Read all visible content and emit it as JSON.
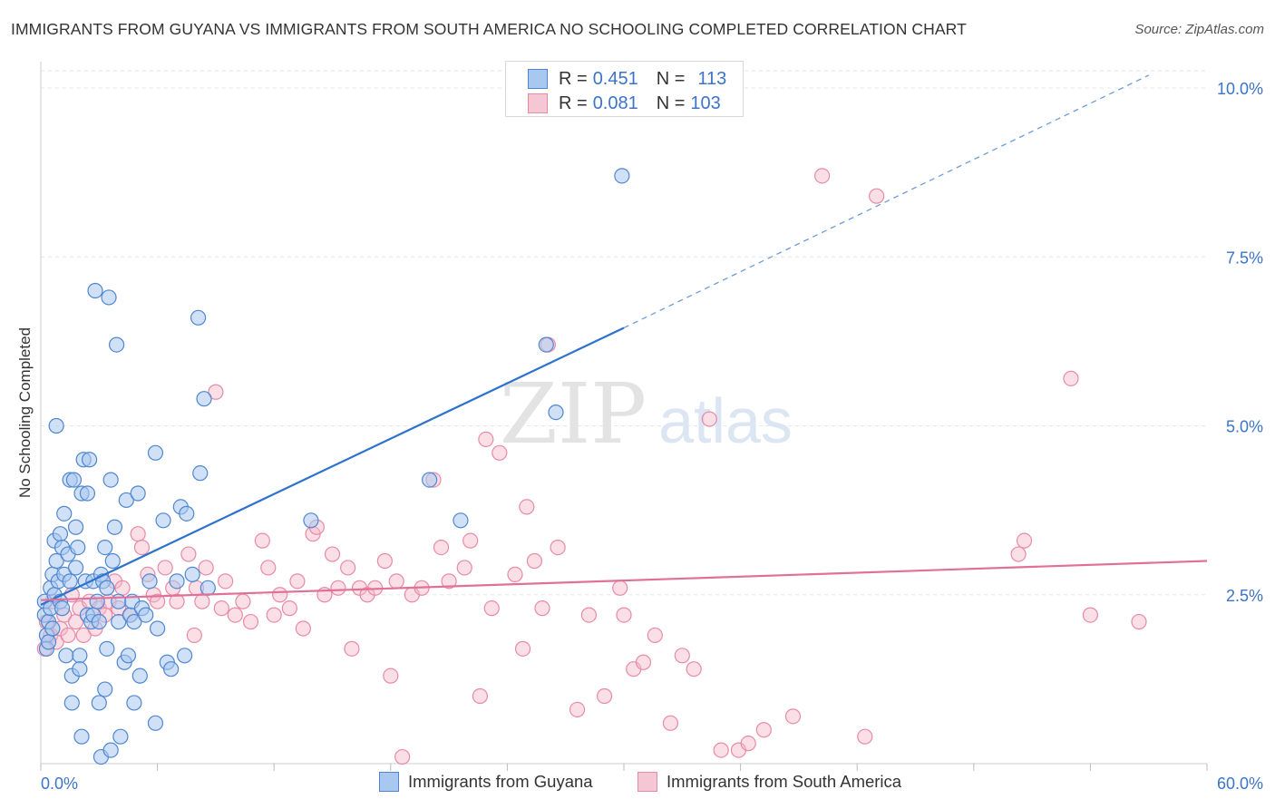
{
  "title": "IMMIGRANTS FROM GUYANA VS IMMIGRANTS FROM SOUTH AMERICA NO SCHOOLING COMPLETED CORRELATION CHART",
  "source": "Source: ZipAtlas.com",
  "watermark": {
    "zip": "ZIP",
    "atlas": "atlas"
  },
  "colors": {
    "blue_fill": "#a9c8f0",
    "blue_stroke": "#4f86d0",
    "blue_line": "#2d72cc",
    "pink_fill": "#f5b8ca",
    "pink_stroke": "#e88aa6",
    "pink_line": "#e07098",
    "axis_label": "#3b74c8"
  },
  "legend": {
    "rows": [
      {
        "r_label": "R = ",
        "r_value": "0.451",
        "n_label": "N = ",
        "n_value": "113"
      },
      {
        "r_label": "R = ",
        "r_value": "0.081",
        "n_label": "N = ",
        "n_value": "103"
      }
    ]
  },
  "chart_data": {
    "type": "scatter",
    "title": "IMMIGRANTS FROM GUYANA VS IMMIGRANTS FROM SOUTH AMERICA NO SCHOOLING COMPLETED CORRELATION CHART",
    "xlabel": "",
    "ylabel": "No Schooling Completed",
    "xlim": [
      0,
      60
    ],
    "ylim": [
      0,
      10
    ],
    "x_tick_labels": [
      "0.0%",
      "60.0%"
    ],
    "y_ticks": [
      2.5,
      5.0,
      7.5,
      10.0
    ],
    "y_tick_labels": [
      "2.5%",
      "5.0%",
      "7.5%",
      "10.0%"
    ],
    "grid": true,
    "legend_placement": "bottom",
    "series": [
      {
        "name": "Immigrants from Guyana",
        "trend": {
          "x0": 0,
          "y0": 2.35,
          "x1": 30,
          "y1": 6.45,
          "dashed_to_x": 57,
          "dashed_to_y": 10.0
        },
        "points": [
          [
            0.2,
            2.4
          ],
          [
            0.2,
            2.2
          ],
          [
            0.3,
            1.9
          ],
          [
            0.3,
            1.7
          ],
          [
            0.4,
            2.1
          ],
          [
            0.4,
            1.8
          ],
          [
            0.5,
            2.3
          ],
          [
            0.5,
            2.6
          ],
          [
            0.6,
            2.8
          ],
          [
            0.6,
            2.0
          ],
          [
            0.7,
            2.5
          ],
          [
            0.7,
            3.3
          ],
          [
            0.8,
            5.0
          ],
          [
            0.8,
            3.0
          ],
          [
            0.9,
            2.7
          ],
          [
            1.0,
            2.4
          ],
          [
            1.0,
            3.4
          ],
          [
            1.1,
            3.2
          ],
          [
            1.1,
            2.3
          ],
          [
            1.2,
            3.7
          ],
          [
            1.2,
            2.8
          ],
          [
            1.3,
            1.6
          ],
          [
            1.4,
            3.1
          ],
          [
            1.5,
            2.7
          ],
          [
            1.5,
            4.2
          ],
          [
            1.6,
            1.3
          ],
          [
            1.6,
            0.9
          ],
          [
            1.7,
            4.2
          ],
          [
            1.8,
            3.5
          ],
          [
            1.8,
            2.9
          ],
          [
            1.9,
            3.2
          ],
          [
            2.0,
            1.6
          ],
          [
            2.0,
            1.4
          ],
          [
            2.1,
            0.4
          ],
          [
            2.1,
            4.0
          ],
          [
            2.2,
            4.5
          ],
          [
            2.3,
            2.7
          ],
          [
            2.4,
            2.2
          ],
          [
            2.4,
            4.0
          ],
          [
            2.5,
            4.5
          ],
          [
            2.6,
            2.1
          ],
          [
            2.7,
            2.2
          ],
          [
            2.7,
            2.7
          ],
          [
            2.8,
            7.0
          ],
          [
            2.9,
            2.4
          ],
          [
            3.0,
            0.9
          ],
          [
            3.0,
            2.1
          ],
          [
            3.1,
            2.8
          ],
          [
            3.1,
            0.1
          ],
          [
            3.2,
            2.7
          ],
          [
            3.3,
            1.1
          ],
          [
            3.3,
            3.2
          ],
          [
            3.4,
            1.7
          ],
          [
            3.4,
            2.6
          ],
          [
            3.5,
            6.9
          ],
          [
            3.6,
            4.2
          ],
          [
            3.6,
            0.2
          ],
          [
            3.7,
            3.0
          ],
          [
            3.8,
            3.5
          ],
          [
            3.9,
            6.2
          ],
          [
            4.0,
            2.4
          ],
          [
            4.0,
            2.1
          ],
          [
            4.1,
            0.4
          ],
          [
            4.3,
            1.5
          ],
          [
            4.4,
            3.9
          ],
          [
            4.5,
            1.6
          ],
          [
            4.6,
            2.2
          ],
          [
            4.7,
            2.4
          ],
          [
            4.8,
            0.9
          ],
          [
            4.8,
            2.1
          ],
          [
            5.0,
            4.0
          ],
          [
            5.1,
            1.3
          ],
          [
            5.2,
            2.3
          ],
          [
            5.4,
            2.2
          ],
          [
            5.6,
            2.7
          ],
          [
            5.9,
            0.6
          ],
          [
            5.9,
            4.6
          ],
          [
            6.0,
            2.0
          ],
          [
            6.3,
            3.6
          ],
          [
            6.5,
            1.5
          ],
          [
            6.7,
            1.4
          ],
          [
            7.0,
            2.7
          ],
          [
            7.2,
            3.8
          ],
          [
            7.4,
            1.6
          ],
          [
            7.5,
            3.7
          ],
          [
            7.8,
            2.8
          ],
          [
            8.1,
            6.6
          ],
          [
            8.2,
            4.3
          ],
          [
            8.4,
            5.4
          ],
          [
            8.6,
            2.6
          ],
          [
            13.9,
            3.6
          ],
          [
            20.0,
            4.2
          ],
          [
            21.6,
            3.6
          ],
          [
            26.0,
            6.2
          ],
          [
            26.5,
            5.2
          ],
          [
            29.9,
            8.7
          ]
        ]
      },
      {
        "name": "Immigrants from South America",
        "trend": {
          "x0": 0,
          "y0": 2.42,
          "x1": 60,
          "y1": 3.0
        },
        "points": [
          [
            0.2,
            1.7
          ],
          [
            0.3,
            2.1
          ],
          [
            0.5,
            1.9
          ],
          [
            0.6,
            2.4
          ],
          [
            0.8,
            1.8
          ],
          [
            1.0,
            2.0
          ],
          [
            1.2,
            2.2
          ],
          [
            1.4,
            1.9
          ],
          [
            1.6,
            2.5
          ],
          [
            1.8,
            2.1
          ],
          [
            2.0,
            2.3
          ],
          [
            2.2,
            1.9
          ],
          [
            2.5,
            2.4
          ],
          [
            2.8,
            2.0
          ],
          [
            3.0,
            2.3
          ],
          [
            3.3,
            2.2
          ],
          [
            3.5,
            2.4
          ],
          [
            3.8,
            2.7
          ],
          [
            4.0,
            2.3
          ],
          [
            4.2,
            2.6
          ],
          [
            4.6,
            2.2
          ],
          [
            5.0,
            3.4
          ],
          [
            5.2,
            3.2
          ],
          [
            5.5,
            2.8
          ],
          [
            5.8,
            2.5
          ],
          [
            6.0,
            2.4
          ],
          [
            6.4,
            2.9
          ],
          [
            6.8,
            2.6
          ],
          [
            7.0,
            2.4
          ],
          [
            7.6,
            3.1
          ],
          [
            7.9,
            1.9
          ],
          [
            8.0,
            2.6
          ],
          [
            8.3,
            2.4
          ],
          [
            8.5,
            2.9
          ],
          [
            9.0,
            5.5
          ],
          [
            9.3,
            2.3
          ],
          [
            9.5,
            2.7
          ],
          [
            10.0,
            2.2
          ],
          [
            10.4,
            2.4
          ],
          [
            10.8,
            2.1
          ],
          [
            11.4,
            3.3
          ],
          [
            11.7,
            2.9
          ],
          [
            12.0,
            2.2
          ],
          [
            12.3,
            2.5
          ],
          [
            12.8,
            2.3
          ],
          [
            13.2,
            2.7
          ],
          [
            13.5,
            2.0
          ],
          [
            14.0,
            3.4
          ],
          [
            14.2,
            3.5
          ],
          [
            14.6,
            2.5
          ],
          [
            15.0,
            3.1
          ],
          [
            15.3,
            2.6
          ],
          [
            15.8,
            2.9
          ],
          [
            16.0,
            1.7
          ],
          [
            16.4,
            2.6
          ],
          [
            16.8,
            2.5
          ],
          [
            17.2,
            2.6
          ],
          [
            17.7,
            3.0
          ],
          [
            18.0,
            1.3
          ],
          [
            18.3,
            2.7
          ],
          [
            18.6,
            0.1
          ],
          [
            19.1,
            2.5
          ],
          [
            19.6,
            2.6
          ],
          [
            20.2,
            4.2
          ],
          [
            20.6,
            3.2
          ],
          [
            21.0,
            2.7
          ],
          [
            21.8,
            2.9
          ],
          [
            22.1,
            3.3
          ],
          [
            22.6,
            1.0
          ],
          [
            22.9,
            4.8
          ],
          [
            23.2,
            2.3
          ],
          [
            23.6,
            4.6
          ],
          [
            24.4,
            2.8
          ],
          [
            24.8,
            1.7
          ],
          [
            25.0,
            3.8
          ],
          [
            25.4,
            3.0
          ],
          [
            25.8,
            2.3
          ],
          [
            26.1,
            6.2
          ],
          [
            26.6,
            3.2
          ],
          [
            27.6,
            0.8
          ],
          [
            28.2,
            2.2
          ],
          [
            29.0,
            1.0
          ],
          [
            29.8,
            2.6
          ],
          [
            30.0,
            2.2
          ],
          [
            30.5,
            1.4
          ],
          [
            31.0,
            1.5
          ],
          [
            31.6,
            1.9
          ],
          [
            32.4,
            0.6
          ],
          [
            33.0,
            1.6
          ],
          [
            33.6,
            1.4
          ],
          [
            34.4,
            5.1
          ],
          [
            35.0,
            0.2
          ],
          [
            35.9,
            0.2
          ],
          [
            36.4,
            0.3
          ],
          [
            37.2,
            0.5
          ],
          [
            38.7,
            0.7
          ],
          [
            40.2,
            8.7
          ],
          [
            42.4,
            0.4
          ],
          [
            43.0,
            8.4
          ],
          [
            50.3,
            3.1
          ],
          [
            50.6,
            3.3
          ],
          [
            53.0,
            5.7
          ],
          [
            54.0,
            2.2
          ],
          [
            56.5,
            2.1
          ]
        ]
      }
    ]
  }
}
